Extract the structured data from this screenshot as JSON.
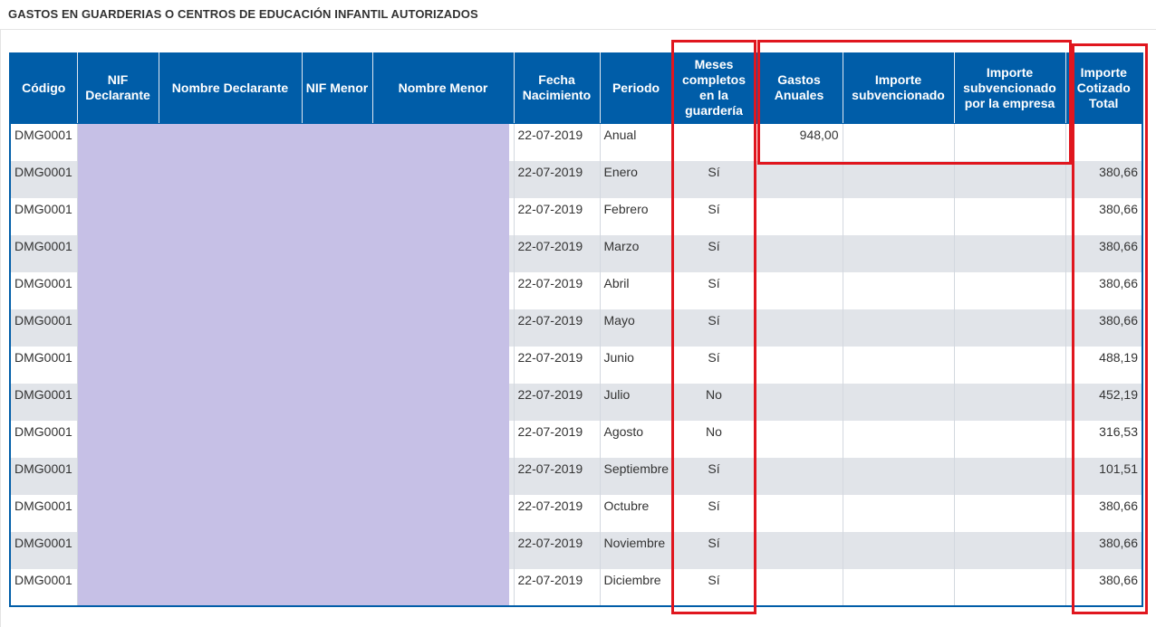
{
  "section_title": "GASTOS EN GUARDERIAS O CENTROS DE EDUCACIÓN INFANTIL AUTORIZADOS",
  "columns": [
    "Código",
    "NIF Declarante",
    "Nombre Declarante",
    "NIF Menor",
    "Nombre Menor",
    "Fecha Nacimiento",
    "Periodo",
    "Meses completos en la guardería",
    "Gastos Anuales",
    "Importe subvencionado",
    "Importe subvencionado por la empresa",
    "Importe Cotizado Total"
  ],
  "rows": [
    {
      "codigo": "DMG0001",
      "fecha": "22-07-2019",
      "periodo": "Anual",
      "meses": "",
      "gastos": "948,00",
      "importe_sub": "",
      "importe_emp": "",
      "total": ""
    },
    {
      "codigo": "DMG0001",
      "fecha": "22-07-2019",
      "periodo": "Enero",
      "meses": "Sí",
      "gastos": "",
      "importe_sub": "",
      "importe_emp": "",
      "total": "380,66"
    },
    {
      "codigo": "DMG0001",
      "fecha": "22-07-2019",
      "periodo": "Febrero",
      "meses": "Sí",
      "gastos": "",
      "importe_sub": "",
      "importe_emp": "",
      "total": "380,66"
    },
    {
      "codigo": "DMG0001",
      "fecha": "22-07-2019",
      "periodo": "Marzo",
      "meses": "Sí",
      "gastos": "",
      "importe_sub": "",
      "importe_emp": "",
      "total": "380,66"
    },
    {
      "codigo": "DMG0001",
      "fecha": "22-07-2019",
      "periodo": "Abril",
      "meses": "Sí",
      "gastos": "",
      "importe_sub": "",
      "importe_emp": "",
      "total": "380,66"
    },
    {
      "codigo": "DMG0001",
      "fecha": "22-07-2019",
      "periodo": "Mayo",
      "meses": "Sí",
      "gastos": "",
      "importe_sub": "",
      "importe_emp": "",
      "total": "380,66"
    },
    {
      "codigo": "DMG0001",
      "fecha": "22-07-2019",
      "periodo": "Junio",
      "meses": "Sí",
      "gastos": "",
      "importe_sub": "",
      "importe_emp": "",
      "total": "488,19"
    },
    {
      "codigo": "DMG0001",
      "fecha": "22-07-2019",
      "periodo": "Julio",
      "meses": "No",
      "gastos": "",
      "importe_sub": "",
      "importe_emp": "",
      "total": "452,19"
    },
    {
      "codigo": "DMG0001",
      "fecha": "22-07-2019",
      "periodo": "Agosto",
      "meses": "No",
      "gastos": "",
      "importe_sub": "",
      "importe_emp": "",
      "total": "316,53"
    },
    {
      "codigo": "DMG0001",
      "fecha": "22-07-2019",
      "periodo": "Septiembre",
      "meses": "Sí",
      "gastos": "",
      "importe_sub": "",
      "importe_emp": "",
      "total": "101,51"
    },
    {
      "codigo": "DMG0001",
      "fecha": "22-07-2019",
      "periodo": "Octubre",
      "meses": "Sí",
      "gastos": "",
      "importe_sub": "",
      "importe_emp": "",
      "total": "380,66"
    },
    {
      "codigo": "DMG0001",
      "fecha": "22-07-2019",
      "periodo": "Noviembre",
      "meses": "Sí",
      "gastos": "",
      "importe_sub": "",
      "importe_emp": "",
      "total": "380,66"
    },
    {
      "codigo": "DMG0001",
      "fecha": "22-07-2019",
      "periodo": "Diciembre",
      "meses": "Sí",
      "gastos": "",
      "importe_sub": "",
      "importe_emp": "",
      "total": "380,66"
    }
  ],
  "colors": {
    "header_bg": "#005da8",
    "row_alt_bg": "#e1e4e9",
    "redaction": "#c6c0e6",
    "highlight_box": "#e0161e"
  }
}
